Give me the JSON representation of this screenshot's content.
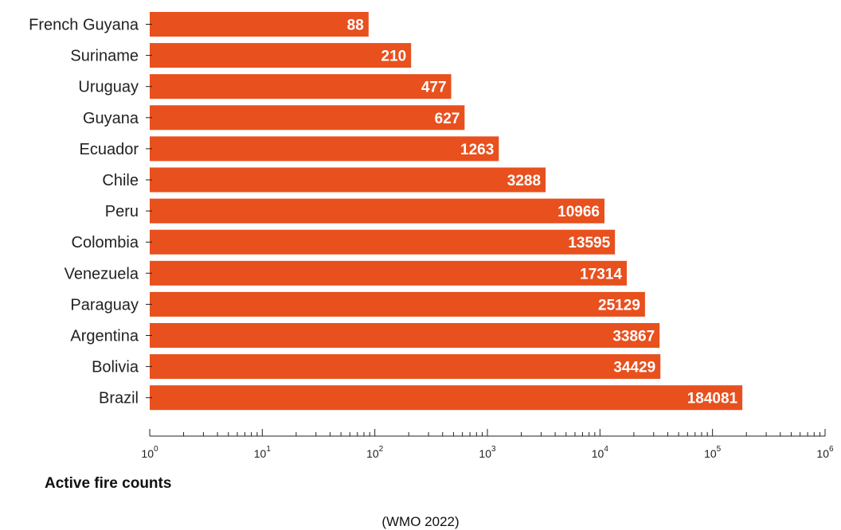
{
  "chart_data": {
    "type": "bar",
    "orientation": "horizontal",
    "scale": "log",
    "categories": [
      "French Guyana",
      "Suriname",
      "Uruguay",
      "Guyana",
      "Ecuador",
      "Chile",
      "Peru",
      "Colombia",
      "Venezuela",
      "Paraguay",
      "Argentina",
      "Bolivia",
      "Brazil"
    ],
    "values": [
      88,
      210,
      477,
      627,
      1263,
      3288,
      10966,
      13595,
      17314,
      25129,
      33867,
      34429,
      184081
    ],
    "xlabel": "Active fire counts",
    "xlim": [
      1,
      1000000
    ],
    "xticks": [
      {
        "base": "10",
        "exp": "0"
      },
      {
        "base": "10",
        "exp": "1"
      },
      {
        "base": "10",
        "exp": "2"
      },
      {
        "base": "10",
        "exp": "3"
      },
      {
        "base": "10",
        "exp": "4"
      },
      {
        "base": "10",
        "exp": "5"
      },
      {
        "base": "10",
        "exp": "6"
      }
    ],
    "grid": false,
    "bar_color": "#e8501e",
    "value_label_color": "#ffffff",
    "source": "(WMO 2022)"
  }
}
